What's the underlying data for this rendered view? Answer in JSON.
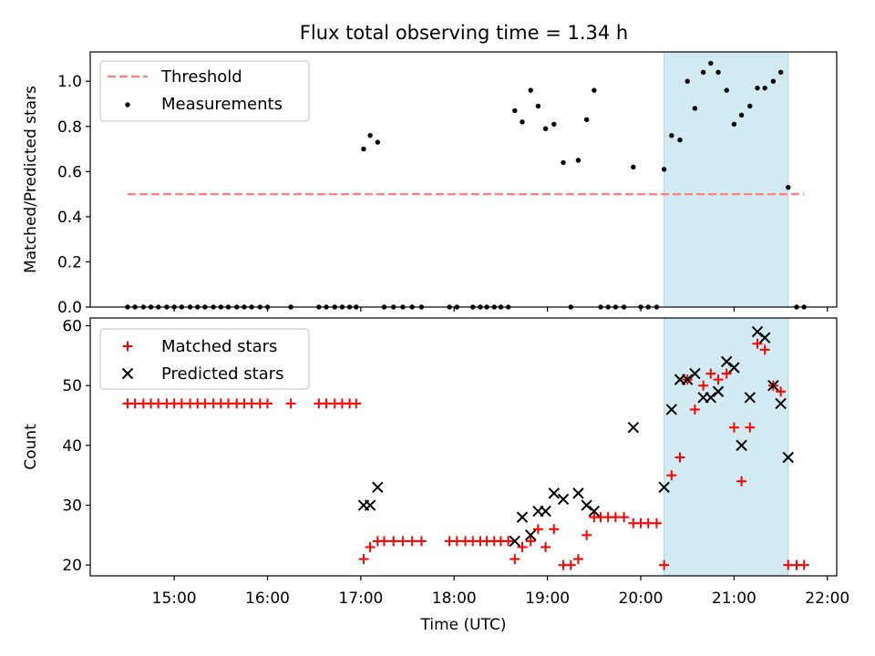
{
  "title": "Flux total observing time = 1.34 h",
  "colors": {
    "threshold": "#ff7f7f",
    "measurement": "#000000",
    "matched": "#ff0000",
    "predicted": "#000000",
    "shade": "#add8e6"
  },
  "x_axis": {
    "label": "Time (UTC)",
    "ticks": [
      {
        "value": 15,
        "label": "15:00"
      },
      {
        "value": 16,
        "label": "16:00"
      },
      {
        "value": 17,
        "label": "17:00"
      },
      {
        "value": 18,
        "label": "18:00"
      },
      {
        "value": 19,
        "label": "19:00"
      },
      {
        "value": 20,
        "label": "20:00"
      },
      {
        "value": 21,
        "label": "21:00"
      },
      {
        "value": 22,
        "label": "22:00"
      }
    ],
    "range": [
      14.1,
      22.1
    ]
  },
  "shaded_interval": [
    20.25,
    21.58
  ],
  "chart_data": [
    {
      "type": "scatter",
      "ylabel": "Matched/Predicted stars",
      "ylim": [
        0,
        1.13
      ],
      "yticks": [
        {
          "value": 0.0,
          "label": "0.0"
        },
        {
          "value": 0.2,
          "label": "0.2"
        },
        {
          "value": 0.4,
          "label": "0.4"
        },
        {
          "value": 0.6,
          "label": "0.6"
        },
        {
          "value": 0.8,
          "label": "0.8"
        },
        {
          "value": 1.0,
          "label": "1.0"
        }
      ],
      "legend_position": "top-left",
      "threshold": {
        "name": "Threshold",
        "value": 0.5,
        "x_range": [
          14.5,
          21.75
        ]
      },
      "series": [
        {
          "name": "Measurements",
          "points": [
            [
              14.5,
              0
            ],
            [
              14.58,
              0
            ],
            [
              14.67,
              0
            ],
            [
              14.75,
              0
            ],
            [
              14.83,
              0
            ],
            [
              14.92,
              0
            ],
            [
              15.0,
              0
            ],
            [
              15.08,
              0
            ],
            [
              15.17,
              0
            ],
            [
              15.25,
              0
            ],
            [
              15.33,
              0
            ],
            [
              15.42,
              0
            ],
            [
              15.5,
              0
            ],
            [
              15.58,
              0
            ],
            [
              15.67,
              0
            ],
            [
              15.75,
              0
            ],
            [
              15.83,
              0
            ],
            [
              15.92,
              0
            ],
            [
              16.0,
              0
            ],
            [
              16.25,
              0
            ],
            [
              16.55,
              0
            ],
            [
              16.63,
              0
            ],
            [
              16.72,
              0
            ],
            [
              16.8,
              0
            ],
            [
              16.88,
              0
            ],
            [
              16.95,
              0
            ],
            [
              17.03,
              0.7
            ],
            [
              17.1,
              0.76
            ],
            [
              17.18,
              0.73
            ],
            [
              17.25,
              0
            ],
            [
              17.35,
              0
            ],
            [
              17.45,
              0
            ],
            [
              17.55,
              0
            ],
            [
              17.65,
              0
            ],
            [
              17.95,
              0
            ],
            [
              18.03,
              0
            ],
            [
              18.2,
              0
            ],
            [
              18.28,
              0
            ],
            [
              18.35,
              0
            ],
            [
              18.43,
              0
            ],
            [
              18.5,
              0
            ],
            [
              18.58,
              0
            ],
            [
              18.65,
              0.87
            ],
            [
              18.73,
              0.82
            ],
            [
              18.82,
              0.96
            ],
            [
              18.9,
              0.89
            ],
            [
              18.98,
              0.79
            ],
            [
              19.07,
              0.81
            ],
            [
              19.17,
              0.64
            ],
            [
              19.25,
              0
            ],
            [
              19.33,
              0.65
            ],
            [
              19.42,
              0.83
            ],
            [
              19.5,
              0.96
            ],
            [
              19.57,
              0
            ],
            [
              19.65,
              0
            ],
            [
              19.73,
              0
            ],
            [
              19.82,
              0
            ],
            [
              19.92,
              0.62
            ],
            [
              20.0,
              0
            ],
            [
              20.08,
              0
            ],
            [
              20.17,
              0
            ],
            [
              20.25,
              0.61
            ],
            [
              20.33,
              0.76
            ],
            [
              20.42,
              0.74
            ],
            [
              20.5,
              1.0
            ],
            [
              20.58,
              0.88
            ],
            [
              20.67,
              1.04
            ],
            [
              20.75,
              1.08
            ],
            [
              20.83,
              1.04
            ],
            [
              20.92,
              0.96
            ],
            [
              21.0,
              0.81
            ],
            [
              21.08,
              0.85
            ],
            [
              21.17,
              0.89
            ],
            [
              21.25,
              0.97
            ],
            [
              21.33,
              0.97
            ],
            [
              21.42,
              1.0
            ],
            [
              21.5,
              1.04
            ],
            [
              21.58,
              0.53
            ],
            [
              21.67,
              0
            ],
            [
              21.75,
              0
            ]
          ]
        }
      ]
    },
    {
      "type": "scatter",
      "ylabel": "Count",
      "ylim": [
        18.2,
        61.3
      ],
      "yticks": [
        {
          "value": 20,
          "label": "20"
        },
        {
          "value": 30,
          "label": "30"
        },
        {
          "value": 40,
          "label": "40"
        },
        {
          "value": 50,
          "label": "50"
        },
        {
          "value": 60,
          "label": "60"
        }
      ],
      "legend_position": "top-left",
      "series": [
        {
          "name": "Matched stars",
          "marker": "plus",
          "points": [
            [
              14.5,
              47
            ],
            [
              14.58,
              47
            ],
            [
              14.67,
              47
            ],
            [
              14.75,
              47
            ],
            [
              14.83,
              47
            ],
            [
              14.92,
              47
            ],
            [
              15.0,
              47
            ],
            [
              15.08,
              47
            ],
            [
              15.17,
              47
            ],
            [
              15.25,
              47
            ],
            [
              15.33,
              47
            ],
            [
              15.42,
              47
            ],
            [
              15.5,
              47
            ],
            [
              15.58,
              47
            ],
            [
              15.67,
              47
            ],
            [
              15.75,
              47
            ],
            [
              15.83,
              47
            ],
            [
              15.92,
              47
            ],
            [
              16.0,
              47
            ],
            [
              16.25,
              47
            ],
            [
              16.55,
              47
            ],
            [
              16.63,
              47
            ],
            [
              16.72,
              47
            ],
            [
              16.8,
              47
            ],
            [
              16.88,
              47
            ],
            [
              16.95,
              47
            ],
            [
              17.03,
              21
            ],
            [
              17.1,
              23
            ],
            [
              17.18,
              24
            ],
            [
              17.25,
              24
            ],
            [
              17.35,
              24
            ],
            [
              17.45,
              24
            ],
            [
              17.55,
              24
            ],
            [
              17.65,
              24
            ],
            [
              17.95,
              24
            ],
            [
              18.03,
              24
            ],
            [
              18.12,
              24
            ],
            [
              18.2,
              24
            ],
            [
              18.28,
              24
            ],
            [
              18.35,
              24
            ],
            [
              18.43,
              24
            ],
            [
              18.5,
              24
            ],
            [
              18.58,
              24
            ],
            [
              18.65,
              21
            ],
            [
              18.73,
              23
            ],
            [
              18.82,
              24
            ],
            [
              18.9,
              26
            ],
            [
              18.98,
              23
            ],
            [
              19.07,
              26
            ],
            [
              19.17,
              20
            ],
            [
              19.25,
              20
            ],
            [
              19.33,
              21
            ],
            [
              19.42,
              25
            ],
            [
              19.5,
              28
            ],
            [
              19.57,
              28
            ],
            [
              19.65,
              28
            ],
            [
              19.73,
              28
            ],
            [
              19.82,
              28
            ],
            [
              19.92,
              27
            ],
            [
              20.0,
              27
            ],
            [
              20.08,
              27
            ],
            [
              20.17,
              27
            ],
            [
              20.25,
              20
            ],
            [
              20.33,
              35
            ],
            [
              20.42,
              38
            ],
            [
              20.5,
              51
            ],
            [
              20.58,
              46
            ],
            [
              20.67,
              50
            ],
            [
              20.75,
              52
            ],
            [
              20.83,
              51
            ],
            [
              20.92,
              52
            ],
            [
              21.0,
              43
            ],
            [
              21.08,
              34
            ],
            [
              21.17,
              43
            ],
            [
              21.25,
              57
            ],
            [
              21.33,
              56
            ],
            [
              21.42,
              50
            ],
            [
              21.5,
              49
            ],
            [
              21.58,
              20
            ],
            [
              21.67,
              20
            ],
            [
              21.75,
              20
            ]
          ]
        },
        {
          "name": "Predicted stars",
          "marker": "cross",
          "points": [
            [
              17.03,
              30
            ],
            [
              17.1,
              30
            ],
            [
              17.18,
              33
            ],
            [
              18.65,
              24
            ],
            [
              18.73,
              28
            ],
            [
              18.82,
              25
            ],
            [
              18.9,
              29
            ],
            [
              18.98,
              29
            ],
            [
              19.07,
              32
            ],
            [
              19.17,
              31
            ],
            [
              19.33,
              32
            ],
            [
              19.42,
              30
            ],
            [
              19.5,
              29
            ],
            [
              19.92,
              43
            ],
            [
              20.25,
              33
            ],
            [
              20.33,
              46
            ],
            [
              20.42,
              51
            ],
            [
              20.5,
              51
            ],
            [
              20.58,
              52
            ],
            [
              20.67,
              48
            ],
            [
              20.75,
              48
            ],
            [
              20.83,
              49
            ],
            [
              20.92,
              54
            ],
            [
              21.0,
              53
            ],
            [
              21.08,
              40
            ],
            [
              21.17,
              48
            ],
            [
              21.25,
              59
            ],
            [
              21.33,
              58
            ],
            [
              21.42,
              50
            ],
            [
              21.5,
              47
            ],
            [
              21.58,
              38
            ]
          ]
        }
      ]
    }
  ]
}
